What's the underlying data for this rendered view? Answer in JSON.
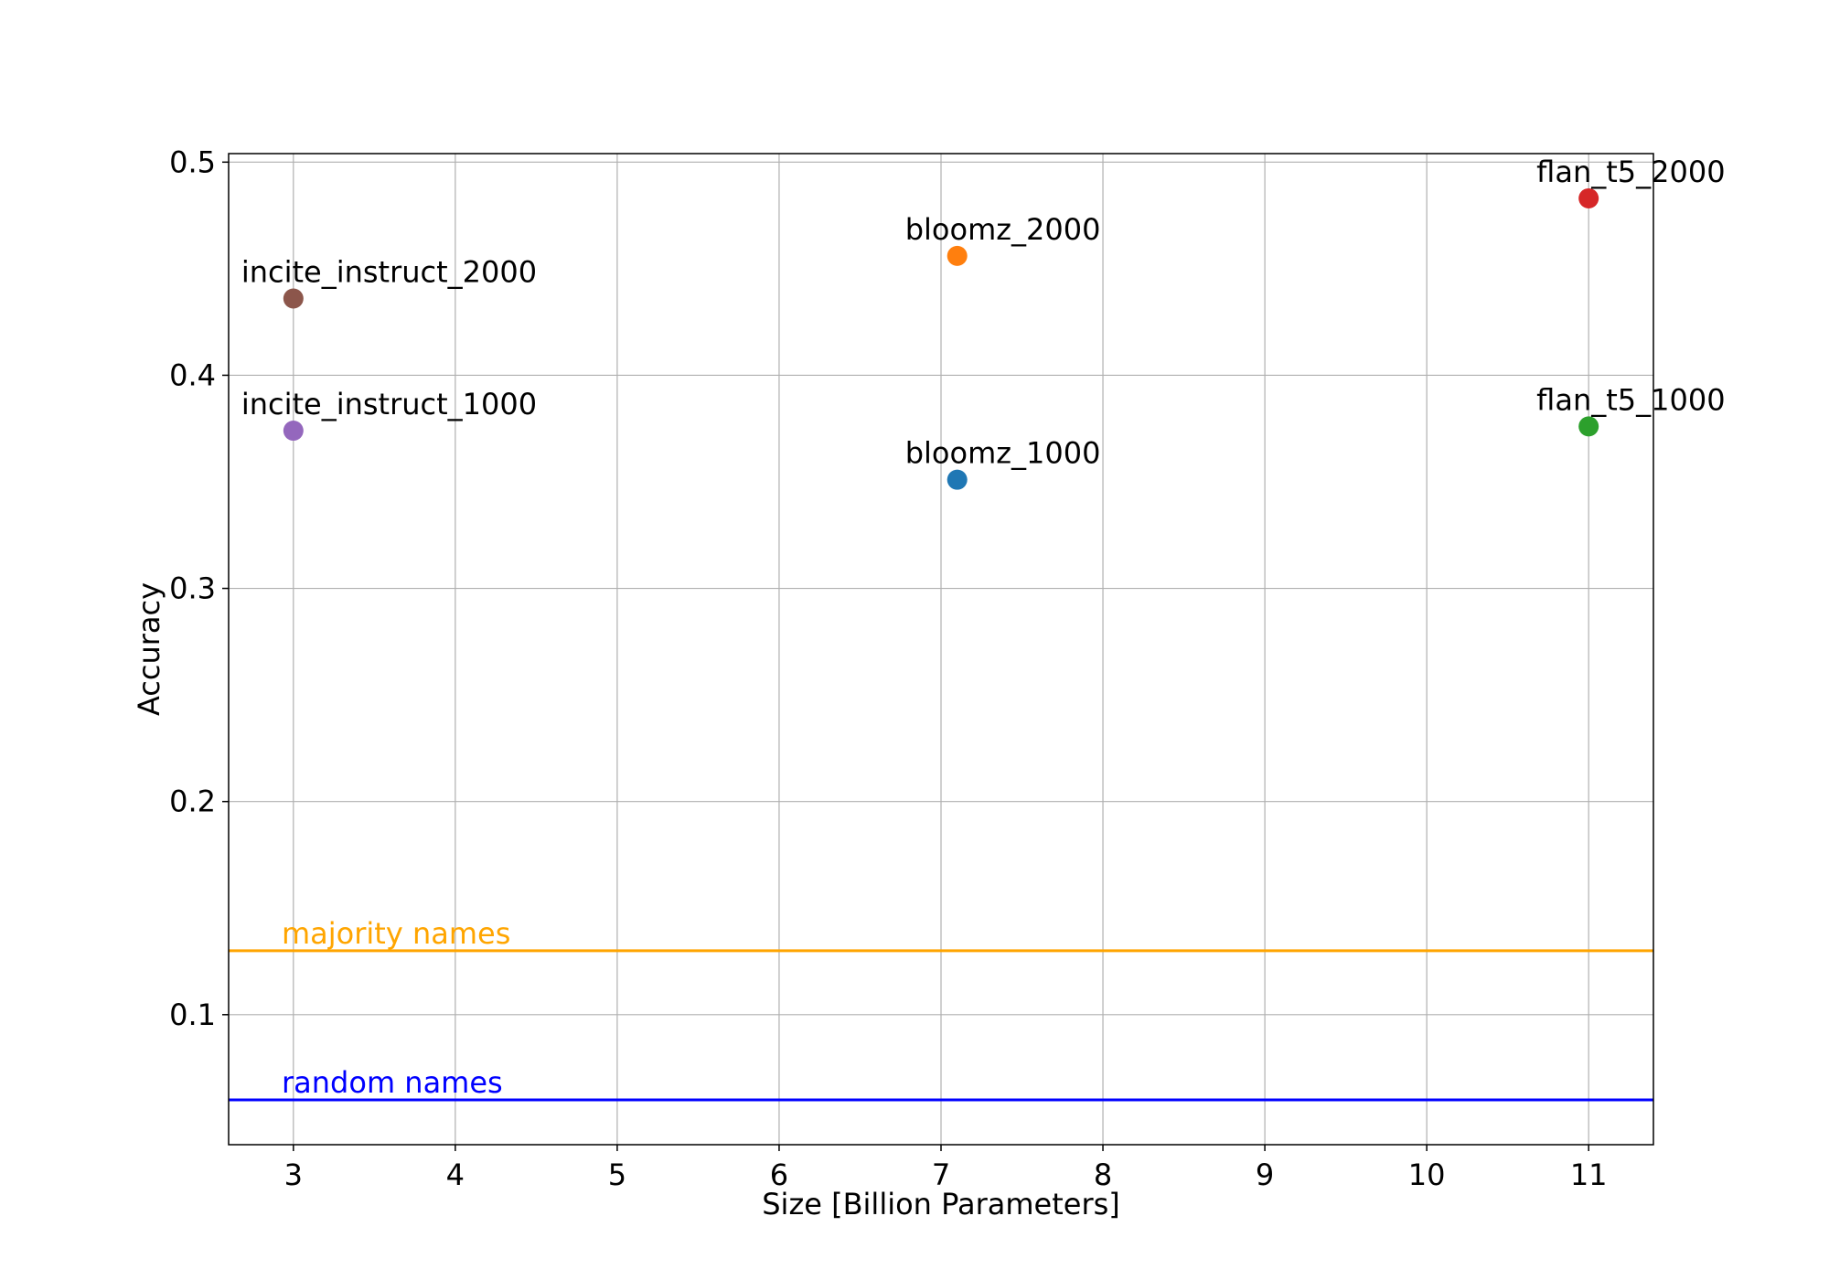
{
  "chart_data": {
    "type": "scatter",
    "xlabel": "Size [Billion Parameters]",
    "ylabel": "Accuracy",
    "xlim": [
      2.6,
      11.4
    ],
    "ylim": [
      0.039,
      0.504
    ],
    "xticks": [
      3,
      4,
      5,
      6,
      7,
      8,
      9,
      10,
      11
    ],
    "yticks": [
      0.1,
      0.2,
      0.3,
      0.4,
      0.5
    ],
    "xtick_labels": [
      "3",
      "4",
      "5",
      "6",
      "7",
      "8",
      "9",
      "10",
      "11"
    ],
    "ytick_labels": [
      "0.1",
      "0.2",
      "0.3",
      "0.4",
      "0.5"
    ],
    "grid": true,
    "legend": "none",
    "points": [
      {
        "label": "incite_instruct_2000",
        "x": 3.0,
        "y": 0.436,
        "color": "#8c564b"
      },
      {
        "label": "incite_instruct_1000",
        "x": 3.0,
        "y": 0.374,
        "color": "#9467bd"
      },
      {
        "label": "bloomz_2000",
        "x": 7.1,
        "y": 0.456,
        "color": "#ff7f0e"
      },
      {
        "label": "bloomz_1000",
        "x": 7.1,
        "y": 0.351,
        "color": "#1f77b4"
      },
      {
        "label": "flan_t5_2000",
        "x": 11.0,
        "y": 0.483,
        "color": "#d62728"
      },
      {
        "label": "flan_t5_1000",
        "x": 11.0,
        "y": 0.376,
        "color": "#2ca02c"
      }
    ],
    "reference_lines": [
      {
        "label": "majority names",
        "y": 0.13,
        "color": "#ffa500"
      },
      {
        "label": "random names",
        "y": 0.06,
        "color": "#0000ff"
      }
    ]
  }
}
